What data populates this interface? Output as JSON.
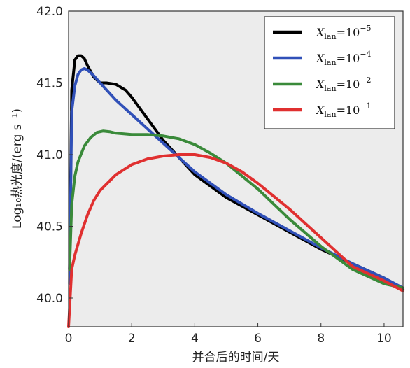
{
  "chart_data": {
    "type": "line",
    "xlabel": "并合后的时间/天",
    "ylabel": "Log₁₀热光度/(erg s⁻¹)",
    "xlim": [
      0,
      10.6
    ],
    "ylim": [
      39.8,
      42.0
    ],
    "x_ticks": [
      "0",
      "2",
      "4",
      "6",
      "8",
      "10"
    ],
    "y_ticks": [
      "40.0",
      "40.5",
      "41.0",
      "41.5",
      "42.0"
    ],
    "grid": false,
    "legend_position": "top-right",
    "series": [
      {
        "name": "X_lan=10^-5",
        "legend_label": {
          "base": "X",
          "sub": "lan",
          "eq": "=10",
          "sup": "−5"
        },
        "color": "#000000",
        "x": [
          0.03,
          0.1,
          0.2,
          0.3,
          0.4,
          0.5,
          0.6,
          0.8,
          1.0,
          1.2,
          1.5,
          1.8,
          2.0,
          2.5,
          3.0,
          3.5,
          4.0,
          5.0,
          6.0,
          7.0,
          8.0,
          9.0,
          10.0,
          10.6
        ],
        "y": [
          40.2,
          41.45,
          41.66,
          41.69,
          41.69,
          41.67,
          41.62,
          41.54,
          41.5,
          41.5,
          41.49,
          41.45,
          41.4,
          41.25,
          41.1,
          40.98,
          40.86,
          40.7,
          40.58,
          40.46,
          40.34,
          40.24,
          40.14,
          40.06
        ]
      },
      {
        "name": "X_lan=10^-4",
        "legend_label": {
          "base": "X",
          "sub": "lan",
          "eq": "=10",
          "sup": "−4"
        },
        "color": "#3050b8",
        "x": [
          0.03,
          0.1,
          0.2,
          0.3,
          0.4,
          0.5,
          0.6,
          0.8,
          1.0,
          1.5,
          2.0,
          2.5,
          3.0,
          3.5,
          4.0,
          5.0,
          6.0,
          7.0,
          8.0,
          9.0,
          10.0,
          10.6
        ],
        "y": [
          40.1,
          41.3,
          41.48,
          41.56,
          41.59,
          41.6,
          41.59,
          41.55,
          41.5,
          41.38,
          41.28,
          41.18,
          41.08,
          40.98,
          40.88,
          40.72,
          40.59,
          40.47,
          40.35,
          40.24,
          40.14,
          40.07
        ]
      },
      {
        "name": "X_lan=10^-2",
        "legend_label": {
          "base": "X",
          "sub": "lan",
          "eq": "=10",
          "sup": "−2"
        },
        "color": "#3a8a3a",
        "x": [
          0.03,
          0.1,
          0.2,
          0.3,
          0.5,
          0.7,
          0.9,
          1.1,
          1.3,
          1.5,
          2.0,
          2.5,
          3.0,
          3.5,
          4.0,
          4.5,
          5.0,
          6.0,
          7.0,
          8.0,
          9.0,
          10.0,
          10.6
        ],
        "y": [
          40.2,
          40.65,
          40.85,
          40.95,
          41.06,
          41.12,
          41.155,
          41.165,
          41.16,
          41.15,
          41.14,
          41.14,
          41.13,
          41.11,
          41.07,
          41.01,
          40.94,
          40.76,
          40.55,
          40.36,
          40.2,
          40.1,
          40.07
        ]
      },
      {
        "name": "X_lan=10^-1",
        "legend_label": {
          "base": "X",
          "sub": "lan",
          "eq": "=10",
          "sup": "−1"
        },
        "color": "#e03030",
        "x": [
          0.0,
          0.1,
          0.2,
          0.4,
          0.6,
          0.8,
          1.0,
          1.5,
          2.0,
          2.5,
          3.0,
          3.5,
          4.0,
          4.5,
          5.0,
          5.5,
          6.0,
          7.0,
          8.0,
          9.0,
          10.0,
          10.6
        ],
        "y": [
          39.8,
          40.2,
          40.3,
          40.45,
          40.58,
          40.68,
          40.75,
          40.86,
          40.93,
          40.97,
          40.99,
          41.0,
          41.0,
          40.98,
          40.94,
          40.88,
          40.8,
          40.62,
          40.42,
          40.22,
          40.12,
          40.05
        ]
      }
    ]
  }
}
